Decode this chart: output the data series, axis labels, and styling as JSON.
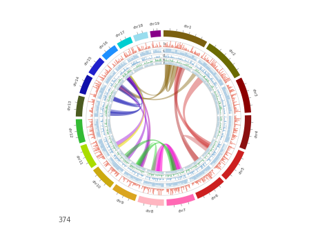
{
  "chromosomes": [
    "chr1",
    "chr2",
    "chr3",
    "chr4",
    "chr5",
    "chr6",
    "chr7",
    "chr8",
    "chr9",
    "chr10",
    "chr11",
    "chr12",
    "chr13",
    "chr14",
    "chr15",
    "chr16",
    "chr17",
    "chr18",
    "chr19"
  ],
  "chr_colors": [
    "#7B6010",
    "#6B6B00",
    "#8B0000",
    "#8B1010",
    "#CC2020",
    "#CC2020",
    "#FF69B4",
    "#FFB6C1",
    "#DAA520",
    "#CCAA10",
    "#AADD00",
    "#33BB33",
    "#4B5B20",
    "#1010AA",
    "#2020CC",
    "#1E90FF",
    "#00CED1",
    "#99DDEE",
    "#880088"
  ],
  "chr_sizes": [
    248,
    243,
    198,
    191,
    181,
    171,
    159,
    146,
    138,
    133,
    135,
    133,
    115,
    107,
    102,
    90,
    83,
    80,
    59
  ],
  "bg_color": "#ffffff",
  "note": "374"
}
